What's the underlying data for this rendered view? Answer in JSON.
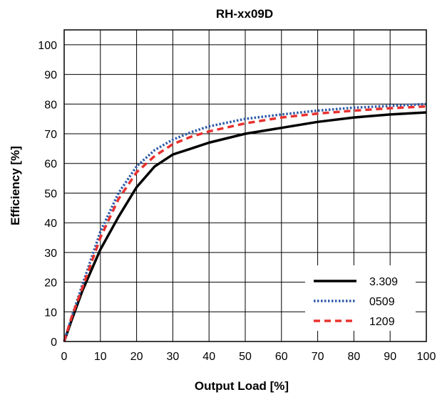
{
  "chart_data": {
    "type": "line",
    "title": "RH-xx09D",
    "xlabel": "Output Load [%]",
    "ylabel": "Efficiency [%]",
    "xlim": [
      0,
      100
    ],
    "ylim": [
      0,
      105
    ],
    "xticks": [
      0,
      10,
      20,
      30,
      40,
      50,
      60,
      70,
      80,
      90,
      100
    ],
    "yticks": [
      0,
      10,
      20,
      30,
      40,
      50,
      60,
      70,
      80,
      90,
      100
    ],
    "grid": true,
    "legend_position": "bottom-right",
    "series": [
      {
        "name": "3.309",
        "color": "#000000",
        "style": "solid",
        "x": [
          0,
          2,
          5,
          10,
          15,
          20,
          25,
          30,
          35,
          40,
          50,
          60,
          70,
          80,
          90,
          100
        ],
        "y": [
          0,
          7,
          17,
          31,
          42,
          52,
          59,
          63,
          65,
          67,
          70,
          72,
          74,
          75.5,
          76.5,
          77.2
        ]
      },
      {
        "name": "0509",
        "color": "#2c5aa8",
        "style": "dotted",
        "x": [
          0,
          2,
          5,
          10,
          15,
          20,
          25,
          30,
          35,
          40,
          50,
          60,
          70,
          80,
          90,
          100
        ],
        "y": [
          0,
          8,
          19,
          37,
          50,
          59,
          64.5,
          68,
          70.5,
          72.5,
          75,
          76.5,
          77.8,
          78.8,
          79.4,
          80
        ]
      },
      {
        "name": "1209",
        "color": "#e8312f",
        "style": "dashed",
        "x": [
          0,
          2,
          5,
          10,
          15,
          20,
          25,
          30,
          35,
          40,
          50,
          60,
          70,
          80,
          90,
          100
        ],
        "y": [
          0,
          8,
          18,
          35,
          48,
          57,
          62.5,
          66.5,
          69,
          70.8,
          73.5,
          75.5,
          76.8,
          77.8,
          78.6,
          79.2
        ]
      }
    ]
  }
}
